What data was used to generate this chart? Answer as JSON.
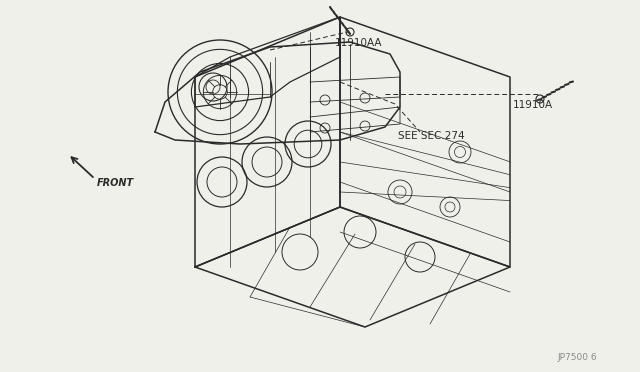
{
  "background_color": "#f0f0eb",
  "border_color": "#cccccc",
  "line_color": "#2a2a2a",
  "text_color": "#2a2a2a",
  "label_front": "FRONT",
  "label_see_sec": "SEE SEC.274",
  "label_11910A": "11910A",
  "label_11910AA": "11910AA",
  "label_jp7500": "JP7500 6",
  "fig_width": 6.4,
  "fig_height": 3.72
}
